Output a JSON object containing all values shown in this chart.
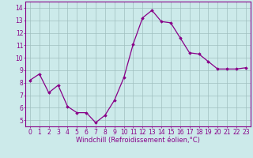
{
  "x": [
    0,
    1,
    2,
    3,
    4,
    5,
    6,
    7,
    8,
    9,
    10,
    11,
    12,
    13,
    14,
    15,
    16,
    17,
    18,
    19,
    20,
    21,
    22,
    23
  ],
  "y": [
    8.2,
    8.7,
    7.2,
    7.8,
    6.1,
    5.6,
    5.6,
    4.8,
    5.4,
    6.6,
    8.4,
    11.1,
    13.2,
    13.8,
    12.9,
    12.8,
    11.6,
    10.4,
    10.3,
    9.7,
    9.1,
    9.1,
    9.1,
    9.2
  ],
  "line_color": "#880088",
  "marker": "D",
  "marker_size": 1.8,
  "line_width": 0.9,
  "xlabel": "Windchill (Refroidissement éolien,°C)",
  "xlabel_fontsize": 6.0,
  "xlim": [
    -0.5,
    23.5
  ],
  "ylim": [
    4.5,
    14.5
  ],
  "yticks": [
    5,
    6,
    7,
    8,
    9,
    10,
    11,
    12,
    13,
    14
  ],
  "xticks": [
    0,
    1,
    2,
    3,
    4,
    5,
    6,
    7,
    8,
    9,
    10,
    11,
    12,
    13,
    14,
    15,
    16,
    17,
    18,
    19,
    20,
    21,
    22,
    23
  ],
  "grid_color": "#a0bfbf",
  "background_color": "#cceaea",
  "tick_fontsize": 5.5,
  "tick_color": "#880088",
  "spine_color": "#880088"
}
